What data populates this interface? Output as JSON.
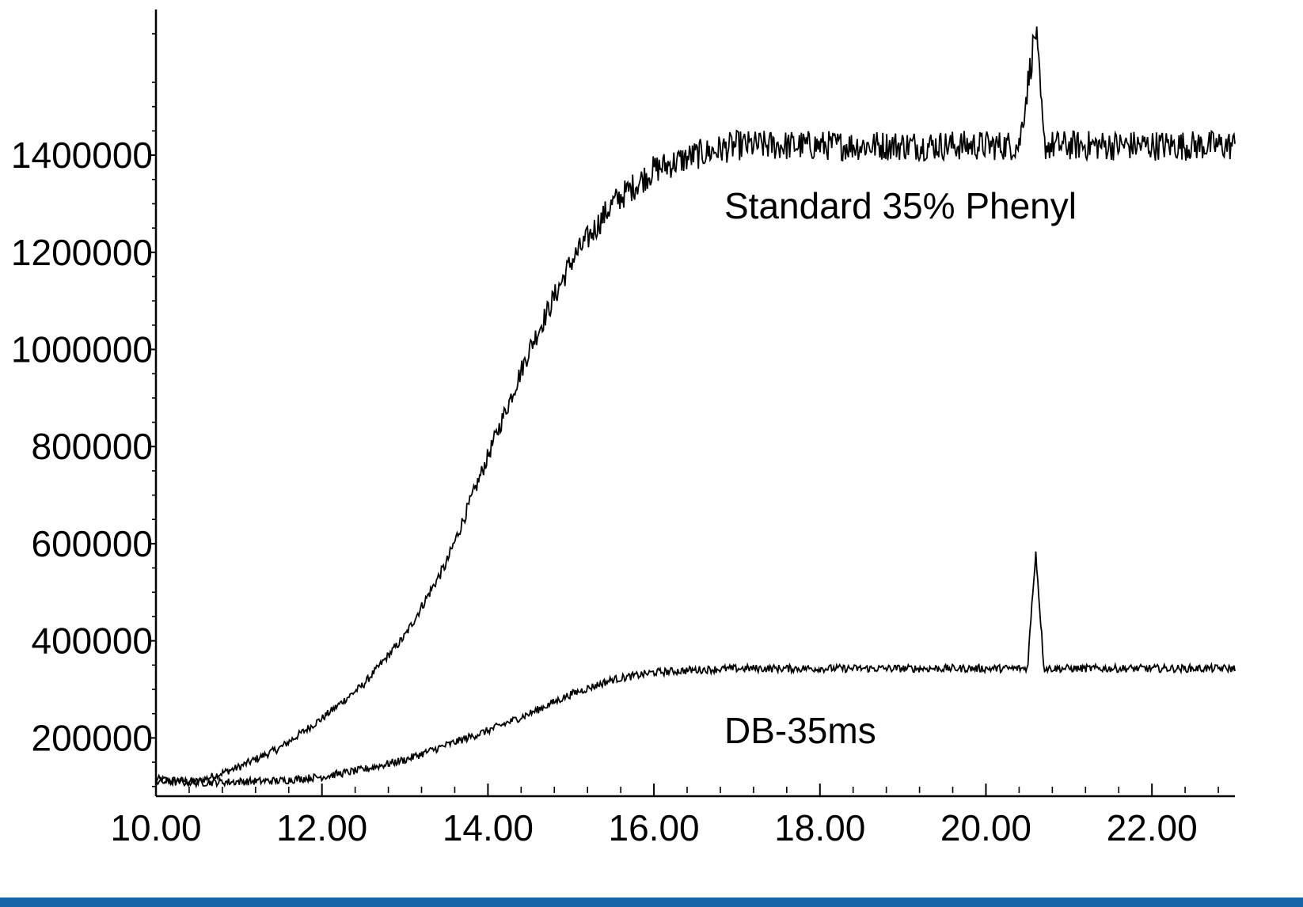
{
  "chart_data": {
    "type": "line",
    "title": "",
    "xlabel": "",
    "ylabel": "",
    "xlim": [
      10.0,
      23.0
    ],
    "ylim": [
      80000,
      1700000
    ],
    "x_ticks": [
      "10.00",
      "12.00",
      "14.00",
      "16.00",
      "18.00",
      "20.00",
      "22.00"
    ],
    "x_tick_values": [
      10,
      12,
      14,
      16,
      18,
      20,
      22
    ],
    "y_ticks": [
      "200000",
      "400000",
      "600000",
      "800000",
      "1000000",
      "1200000",
      "1400000"
    ],
    "y_tick_values": [
      200000,
      400000,
      600000,
      800000,
      1000000,
      1200000,
      1400000
    ],
    "grid": false,
    "legend": "none",
    "series": [
      {
        "name": "Standard 35% Phenyl",
        "color": "#000000",
        "x": [
          10.0,
          10.5,
          11.0,
          11.5,
          12.0,
          12.5,
          13.0,
          13.5,
          14.0,
          14.5,
          15.0,
          15.5,
          16.0,
          16.5,
          17.0,
          17.5,
          18.0,
          18.5,
          19.0,
          19.5,
          20.0,
          20.4,
          20.6,
          20.7,
          21.0,
          21.5,
          22.0,
          22.5,
          23.0
        ],
        "y": [
          115000,
          110000,
          140000,
          180000,
          240000,
          310000,
          410000,
          560000,
          780000,
          1000000,
          1180000,
          1300000,
          1370000,
          1400000,
          1420000,
          1420000,
          1420000,
          1420000,
          1420000,
          1420000,
          1420000,
          1420000,
          1660000,
          1420000,
          1420000,
          1420000,
          1420000,
          1420000,
          1420000
        ]
      },
      {
        "name": "DB-35ms",
        "color": "#000000",
        "x": [
          10.0,
          10.5,
          11.0,
          11.5,
          12.0,
          12.5,
          13.0,
          13.5,
          14.0,
          14.5,
          15.0,
          15.5,
          16.0,
          16.5,
          17.0,
          17.5,
          18.0,
          18.5,
          19.0,
          19.5,
          20.0,
          20.5,
          20.6,
          20.7,
          21.0,
          21.5,
          22.0,
          22.5,
          23.0
        ],
        "y": [
          110000,
          108000,
          110000,
          112000,
          120000,
          135000,
          155000,
          185000,
          215000,
          250000,
          290000,
          320000,
          335000,
          340000,
          343000,
          343000,
          343000,
          343000,
          343000,
          343000,
          343000,
          343000,
          585000,
          343000,
          343000,
          343000,
          343000,
          343000,
          343000
        ]
      }
    ],
    "annotations": [
      "Standard 35% Phenyl",
      "DB-35ms"
    ]
  }
}
